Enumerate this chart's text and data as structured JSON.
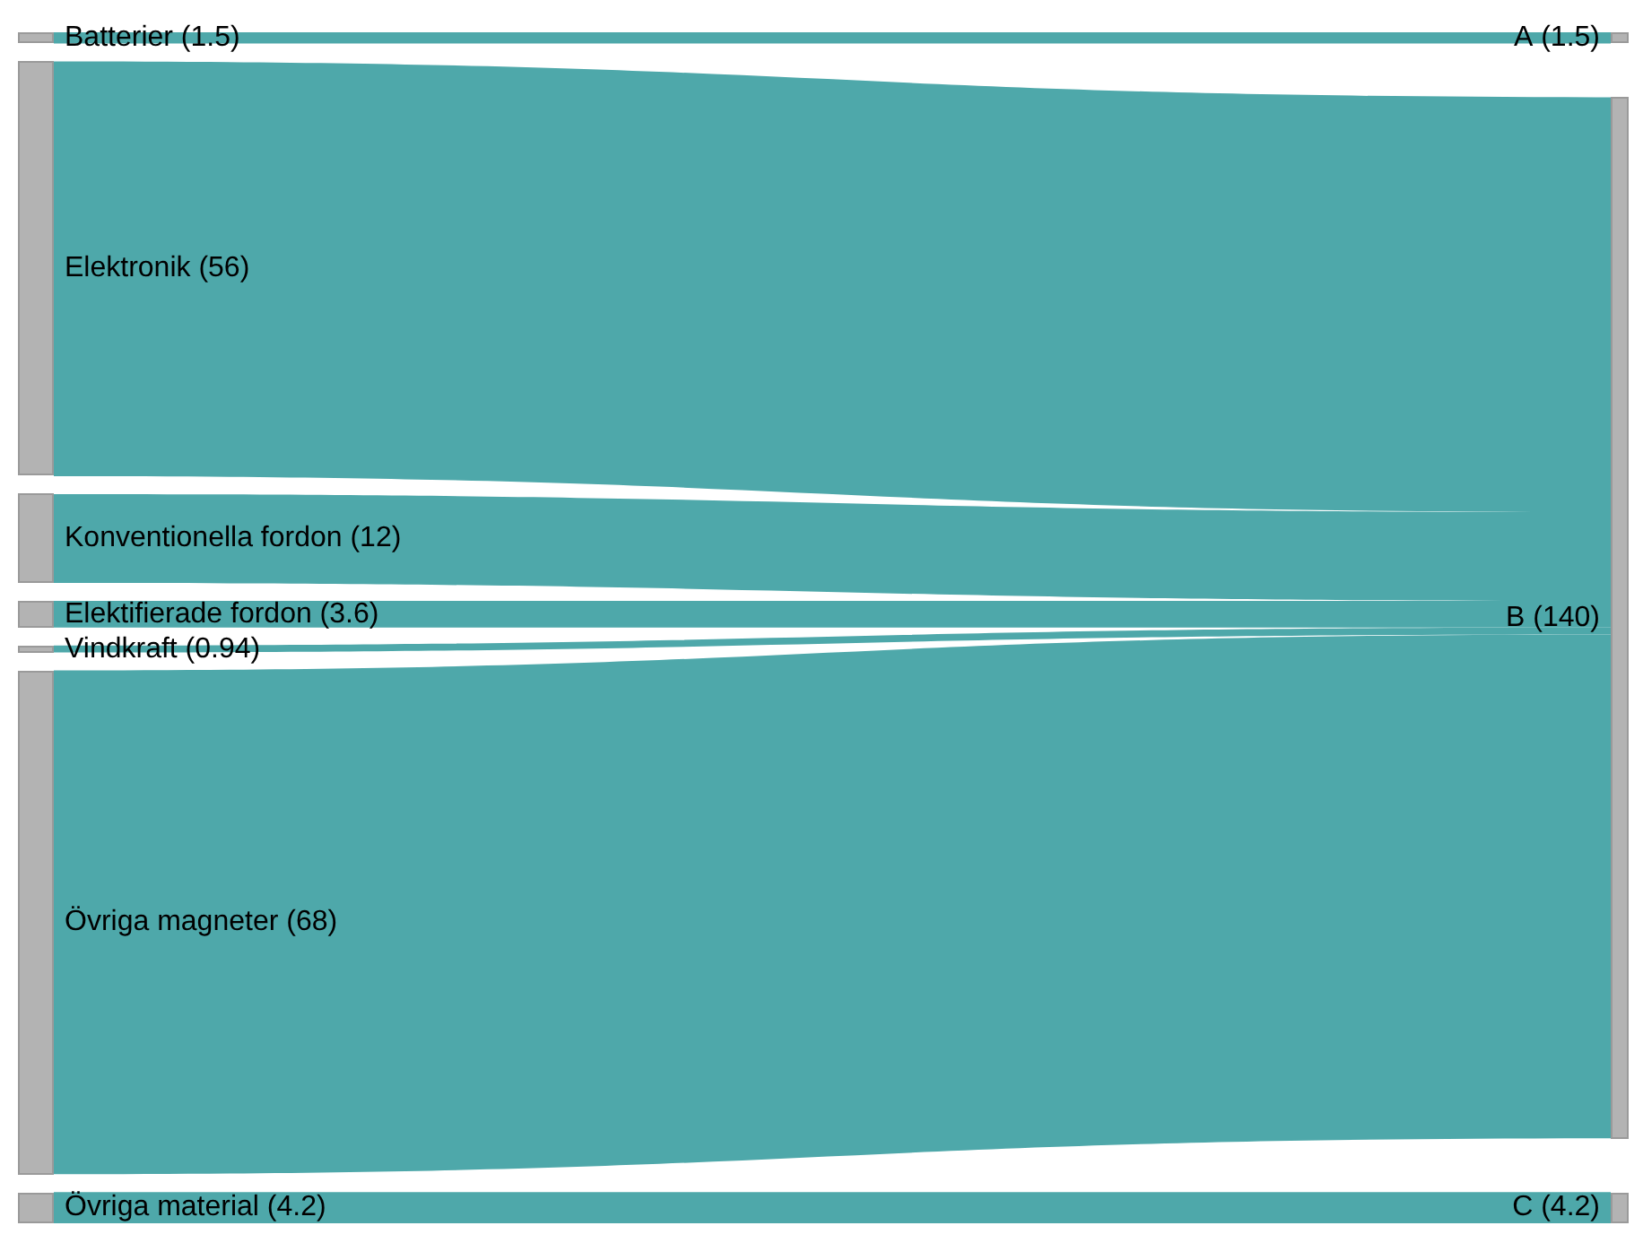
{
  "chart_data": {
    "type": "other",
    "categories": [
      "Batterier",
      "Elektronik",
      "Konventionella fordon",
      "Elektifierade fordon",
      "Vindkraft",
      "Övriga magneter",
      "Övriga material"
    ],
    "y2_categories": [
      "A",
      "B",
      "C"
    ],
    "color": "#b3b3b3",
    "series": [
      {
        "color": "#4ea8aa",
        "values": [
          1.5,
          null,
          null,
          null,
          null,
          null,
          null
        ],
        "value_labels": [
          "(1.5)",
          null,
          null,
          null,
          null,
          null,
          null
        ]
      },
      {
        "color": "#4ea8aa",
        "values": [
          null,
          56,
          12,
          3.6,
          0.94,
          68,
          null
        ],
        "value_labels": [
          null,
          "(56)",
          "(12)",
          "(3.6)",
          "(0.94)",
          "(68)",
          null
        ]
      },
      {
        "color": "#4ea8aa",
        "values": [
          null,
          null,
          null,
          null,
          null,
          null,
          4.2
        ],
        "value_labels": [
          null,
          null,
          null,
          null,
          null,
          null,
          "(4.2)"
        ]
      }
    ],
    "totals": [
      "(1.5)",
      "(140)",
      "(4.2)"
    ]
  }
}
